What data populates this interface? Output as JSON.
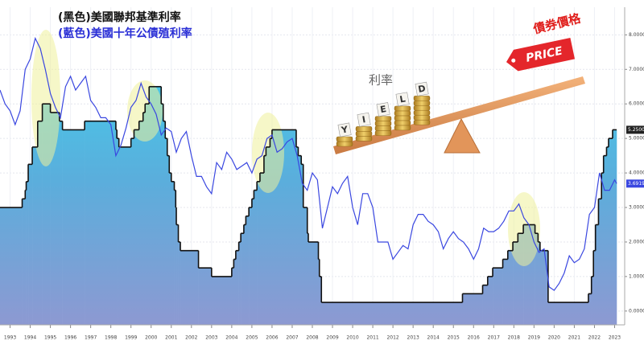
{
  "chart_data": {
    "type": "step-area-line",
    "legend": [
      "(黑色)美國聯邦基準利率",
      "(藍色)美國十年公債殖利率"
    ],
    "annotations": {
      "rate": "利率",
      "bond_price": "債券價格",
      "price_tag": "PRICE",
      "coin_letters": [
        "Y",
        "I",
        "E",
        "L",
        "D"
      ]
    },
    "xlim": [
      1993,
      2024
    ],
    "ylim": [
      -0.4,
      8.8
    ],
    "xticks": [
      {
        "value": 1993.5,
        "label": "1993"
      },
      {
        "value": 1994.5,
        "label": "1994"
      },
      {
        "value": 1995.5,
        "label": "1995"
      },
      {
        "value": 1996.5,
        "label": "1996"
      },
      {
        "value": 1997.5,
        "label": "1997"
      },
      {
        "value": 1998.5,
        "label": "1998"
      },
      {
        "value": 1999.5,
        "label": "1999"
      },
      {
        "value": 2000.5,
        "label": "2000"
      },
      {
        "value": 2001.5,
        "label": "2001"
      },
      {
        "value": 2002.5,
        "label": "2002"
      },
      {
        "value": 2003.5,
        "label": "2003"
      },
      {
        "value": 2004.5,
        "label": "2004"
      },
      {
        "value": 2005.5,
        "label": "2005"
      },
      {
        "value": 2006.5,
        "label": "2006"
      },
      {
        "value": 2007.5,
        "label": "2007"
      },
      {
        "value": 2008.5,
        "label": "2008"
      },
      {
        "value": 2009.5,
        "label": "2009"
      },
      {
        "value": 2010.5,
        "label": "2010"
      },
      {
        "value": 2011.5,
        "label": "2011"
      },
      {
        "value": 2012.5,
        "label": "2012"
      },
      {
        "value": 2013.5,
        "label": "2013"
      },
      {
        "value": 2014.5,
        "label": "2014"
      },
      {
        "value": 2015.5,
        "label": "2015"
      },
      {
        "value": 2016.5,
        "label": "2016"
      },
      {
        "value": 2017.5,
        "label": "2017"
      },
      {
        "value": 2018.5,
        "label": "2018"
      },
      {
        "value": 2019.5,
        "label": "2019"
      },
      {
        "value": 2020.5,
        "label": "2020"
      },
      {
        "value": 2021.5,
        "label": "2021"
      },
      {
        "value": 2022.5,
        "label": "2022"
      },
      {
        "value": 2023.5,
        "label": "2023"
      }
    ],
    "yticks": [
      {
        "value": 0,
        "label": "0.0000"
      },
      {
        "value": 1,
        "label": "1.0000"
      },
      {
        "value": 2,
        "label": "2.0000"
      },
      {
        "value": 3,
        "label": "3.0000"
      },
      {
        "value": 4,
        "label": "4.0000"
      },
      {
        "value": 5,
        "label": "5.0000"
      },
      {
        "value": 6,
        "label": "6.0000"
      },
      {
        "value": 7,
        "label": "7.0000"
      },
      {
        "value": 8,
        "label": "8.0000"
      }
    ],
    "grid": true,
    "series": [
      {
        "name": "(黑色)美國聯邦基準利率",
        "color": "#111111",
        "end_label": "5.2500",
        "x": [
          1993.0,
          1994.1,
          1994.25,
          1994.3,
          1994.4,
          1994.6,
          1994.87,
          1995.1,
          1995.5,
          1995.95,
          1996.1,
          1997.2,
          1998.75,
          1998.8,
          1998.9,
          1999.5,
          1999.65,
          1999.9,
          2000.1,
          2000.2,
          2000.4,
          2001.0,
          2001.1,
          2001.2,
          2001.3,
          2001.4,
          2001.5,
          2001.65,
          2001.72,
          2001.75,
          2001.85,
          2001.95,
          2002.85,
          2003.5,
          2004.5,
          2004.6,
          2004.7,
          2004.85,
          2004.95,
          2005.1,
          2005.2,
          2005.35,
          2005.5,
          2005.6,
          2005.75,
          2005.9,
          2006.1,
          2006.2,
          2006.4,
          2006.5,
          2007.7,
          2007.8,
          2007.95,
          2008.05,
          2008.25,
          2008.3,
          2008.8,
          2008.85,
          2008.95,
          2015.95,
          2016.95,
          2017.2,
          2017.45,
          2017.95,
          2018.2,
          2018.45,
          2018.7,
          2018.97,
          2019.55,
          2019.7,
          2019.8,
          2020.2,
          2022.2,
          2022.35,
          2022.45,
          2022.55,
          2022.7,
          2022.85,
          2022.95,
          2023.1,
          2023.2,
          2023.4
        ],
        "values": [
          3.0,
          3.25,
          3.5,
          3.75,
          4.25,
          4.75,
          5.5,
          6.0,
          5.75,
          5.5,
          5.25,
          5.5,
          5.25,
          5.0,
          4.75,
          5.0,
          5.25,
          5.5,
          5.75,
          6.0,
          6.5,
          6.0,
          5.5,
          5.0,
          4.5,
          4.0,
          3.75,
          3.5,
          3.0,
          2.5,
          2.0,
          1.75,
          1.25,
          1.0,
          1.25,
          1.5,
          1.75,
          2.0,
          2.25,
          2.5,
          2.75,
          3.0,
          3.25,
          3.5,
          3.75,
          4.0,
          4.5,
          4.75,
          5.0,
          5.25,
          4.75,
          4.5,
          4.25,
          3.0,
          2.25,
          2.0,
          1.5,
          1.0,
          0.25,
          0.5,
          0.75,
          1.0,
          1.25,
          1.5,
          1.75,
          2.0,
          2.25,
          2.5,
          2.25,
          2.0,
          1.75,
          0.25,
          0.5,
          1.0,
          1.75,
          2.5,
          3.25,
          4.0,
          4.5,
          4.75,
          5.0,
          5.25
        ]
      },
      {
        "name": "(藍色)美國十年公債殖利率",
        "color": "#3a47e0",
        "end_label": "3.6919",
        "x": [
          1993.0,
          1993.25,
          1993.5,
          1993.75,
          1994.0,
          1994.25,
          1994.5,
          1994.75,
          1995.0,
          1995.25,
          1995.5,
          1995.75,
          1996.0,
          1996.25,
          1996.5,
          1996.75,
          1997.0,
          1997.25,
          1997.5,
          1997.75,
          1998.0,
          1998.25,
          1998.5,
          1998.75,
          1999.0,
          1999.25,
          1999.5,
          1999.75,
          2000.0,
          2000.25,
          2000.5,
          2000.75,
          2001.0,
          2001.25,
          2001.5,
          2001.75,
          2002.0,
          2002.25,
          2002.5,
          2002.75,
          2003.0,
          2003.25,
          2003.5,
          2003.75,
          2004.0,
          2004.25,
          2004.5,
          2004.75,
          2005.0,
          2005.25,
          2005.5,
          2005.75,
          2006.0,
          2006.25,
          2006.5,
          2006.75,
          2007.0,
          2007.25,
          2007.5,
          2007.75,
          2008.0,
          2008.25,
          2008.5,
          2008.75,
          2009.0,
          2009.25,
          2009.5,
          2009.75,
          2010.0,
          2010.25,
          2010.5,
          2010.75,
          2011.0,
          2011.25,
          2011.5,
          2011.75,
          2012.0,
          2012.25,
          2012.5,
          2012.75,
          2013.0,
          2013.25,
          2013.5,
          2013.75,
          2014.0,
          2014.25,
          2014.5,
          2014.75,
          2015.0,
          2015.25,
          2015.5,
          2015.75,
          2016.0,
          2016.25,
          2016.5,
          2016.75,
          2017.0,
          2017.25,
          2017.5,
          2017.75,
          2018.0,
          2018.25,
          2018.5,
          2018.75,
          2019.0,
          2019.25,
          2019.5,
          2019.75,
          2020.0,
          2020.25,
          2020.5,
          2020.75,
          2021.0,
          2021.25,
          2021.5,
          2021.75,
          2022.0,
          2022.25,
          2022.5,
          2022.75,
          2023.0,
          2023.25,
          2023.5,
          2023.6
        ],
        "values": [
          6.4,
          6.0,
          5.8,
          5.4,
          5.8,
          7.0,
          7.3,
          7.9,
          7.6,
          7.0,
          6.3,
          5.9,
          5.6,
          6.5,
          6.8,
          6.4,
          6.6,
          6.8,
          6.1,
          5.9,
          5.6,
          5.6,
          5.4,
          4.5,
          4.8,
          5.3,
          5.9,
          6.1,
          6.6,
          6.2,
          6.0,
          5.7,
          5.1,
          5.3,
          5.2,
          4.6,
          5.0,
          5.2,
          4.5,
          3.9,
          3.9,
          3.6,
          3.4,
          4.3,
          4.1,
          4.6,
          4.4,
          4.1,
          4.2,
          4.3,
          4.0,
          4.4,
          4.5,
          5.0,
          5.1,
          4.6,
          4.7,
          4.9,
          5.0,
          4.5,
          3.7,
          3.5,
          4.0,
          3.8,
          2.4,
          3.0,
          3.6,
          3.4,
          3.7,
          3.9,
          3.0,
          2.5,
          3.4,
          3.4,
          3.0,
          2.0,
          2.0,
          2.0,
          1.5,
          1.7,
          1.9,
          1.8,
          2.5,
          2.8,
          2.8,
          2.6,
          2.5,
          2.3,
          1.8,
          2.1,
          2.3,
          2.1,
          2.0,
          1.8,
          1.5,
          1.8,
          2.4,
          2.3,
          2.3,
          2.4,
          2.6,
          2.9,
          2.9,
          3.1,
          2.7,
          2.5,
          2.0,
          1.7,
          1.8,
          0.7,
          0.6,
          0.8,
          1.1,
          1.6,
          1.4,
          1.5,
          1.8,
          2.8,
          3.0,
          4.0,
          3.5,
          3.5,
          3.8,
          3.6919
        ]
      }
    ]
  }
}
